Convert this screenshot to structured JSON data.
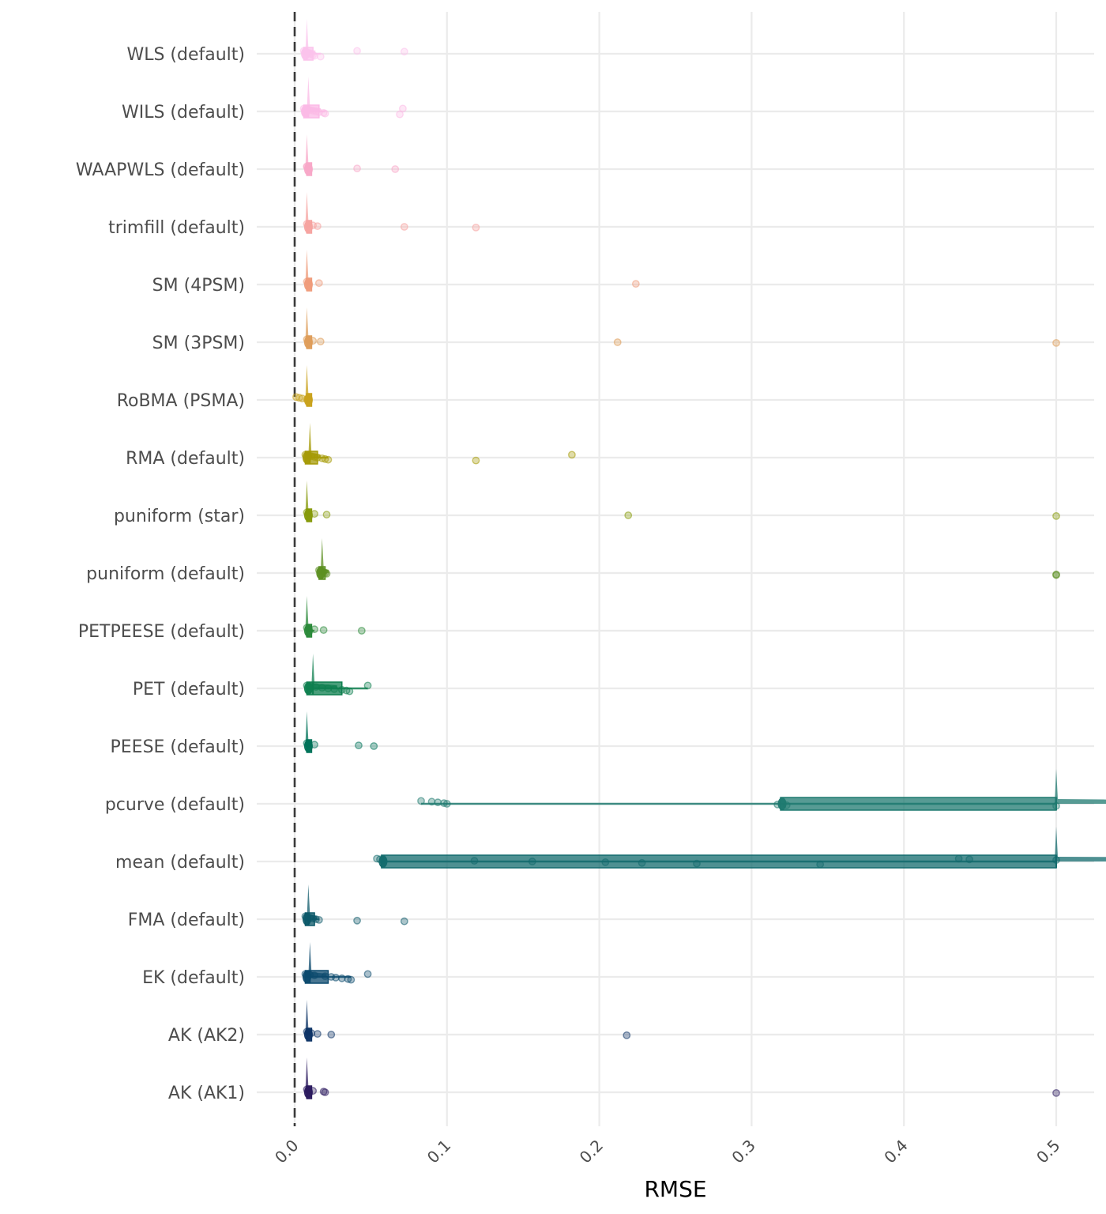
{
  "chart_data": {
    "type": "raincloud",
    "title": "",
    "xlabel": "RMSE",
    "ylabel": "",
    "xlim": [
      0,
      0.5
    ],
    "x_ticks": [
      0.0,
      0.1,
      0.2,
      0.3,
      0.4,
      0.5
    ],
    "x_tick_labels": [
      "0.0",
      "0.1",
      "0.2",
      "0.3",
      "0.4",
      "0.5"
    ],
    "reference_line": {
      "x": 0,
      "style": "dashed"
    },
    "grid": true,
    "legend": "none",
    "categories": [
      "WLS (default)",
      "WILS (default)",
      "WAAPWLS (default)",
      "trimfill (default)",
      "SM (4PSM)",
      "SM (3PSM)",
      "RoBMA (PSMA)",
      "RMA (default)",
      "puniform (star)",
      "puniform (default)",
      "PETPEESE (default)",
      "PET (default)",
      "PEESE (default)",
      "pcurve (default)",
      "mean (default)",
      "FMA (default)",
      "EK (default)",
      "AK (AK2)",
      "AK (AK1)"
    ],
    "series": [
      {
        "name": "WLS (default)",
        "color": "#FBC3EC",
        "box": [
          0.006,
          0.008,
          0.012
        ],
        "points": [
          0.006,
          0.007,
          0.008,
          0.009,
          0.01,
          0.011,
          0.012,
          0.013,
          0.017,
          0.041,
          0.072
        ]
      },
      {
        "name": "WILS (default)",
        "color": "#FBB9E6",
        "box": [
          0.006,
          0.009,
          0.016
        ],
        "points": [
          0.006,
          0.008,
          0.01,
          0.012,
          0.014,
          0.016,
          0.019,
          0.02,
          0.069,
          0.071
        ]
      },
      {
        "name": "WAAPWLS (default)",
        "color": "#F8A8C8",
        "box": [
          0.008,
          0.008,
          0.009
        ],
        "points": [
          0.008,
          0.008,
          0.009,
          0.041,
          0.066
        ]
      },
      {
        "name": "trimfill (default)",
        "color": "#F5A3A0",
        "box": [
          0.008,
          0.008,
          0.009
        ],
        "points": [
          0.008,
          0.009,
          0.012,
          0.015,
          0.072,
          0.119
        ]
      },
      {
        "name": "SM (4PSM)",
        "color": "#EF9C7B",
        "box": [
          0.008,
          0.008,
          0.009
        ],
        "points": [
          0.008,
          0.009,
          0.016,
          0.224
        ]
      },
      {
        "name": "SM (3PSM)",
        "color": "#DE9D5A",
        "box": [
          0.008,
          0.008,
          0.009
        ],
        "points": [
          0.008,
          0.009,
          0.012,
          0.017,
          0.212,
          0.5
        ]
      },
      {
        "name": "RoBMA (PSMA)",
        "color": "#C9A21C",
        "box": [
          0.008,
          0.008,
          0.009
        ],
        "points": [
          0.001,
          0.003,
          0.005,
          0.008,
          0.009
        ]
      },
      {
        "name": "RMA (default)",
        "color": "#A59A06",
        "box": [
          0.007,
          0.01,
          0.015
        ],
        "points": [
          0.007,
          0.009,
          0.011,
          0.013,
          0.015,
          0.018,
          0.02,
          0.022,
          0.119,
          0.182
        ]
      },
      {
        "name": "puniform (star)",
        "color": "#869A0A",
        "box": [
          0.008,
          0.008,
          0.009
        ],
        "points": [
          0.008,
          0.009,
          0.013,
          0.021,
          0.219,
          0.5
        ]
      },
      {
        "name": "puniform (default)",
        "color": "#5D9023",
        "box": [
          0.016,
          0.018,
          0.02
        ],
        "points": [
          0.016,
          0.017,
          0.018,
          0.019,
          0.02,
          0.021,
          0.5,
          0.5
        ]
      },
      {
        "name": "PETPEESE (default)",
        "color": "#2B8A3A",
        "box": [
          0.008,
          0.008,
          0.01
        ],
        "points": [
          0.008,
          0.009,
          0.013,
          0.019,
          0.044
        ]
      },
      {
        "name": "PET (default)",
        "color": "#0E7F4F",
        "box": [
          0.008,
          0.012,
          0.031
        ],
        "points": [
          0.008,
          0.01,
          0.014,
          0.018,
          0.022,
          0.026,
          0.031,
          0.034,
          0.036,
          0.048
        ]
      },
      {
        "name": "PEESE (default)",
        "color": "#00735A",
        "box": [
          0.008,
          0.008,
          0.009
        ],
        "points": [
          0.008,
          0.009,
          0.013,
          0.042,
          0.052
        ]
      },
      {
        "name": "pcurve (default)",
        "color": "#1F7A70",
        "box": [
          0.319,
          0.5,
          0.5
        ],
        "whisker": [
          0.083,
          0.5
        ],
        "points": [
          0.083,
          0.09,
          0.094,
          0.098,
          0.1,
          0.317,
          0.323,
          0.5
        ]
      },
      {
        "name": "mean (default)",
        "color": "#136B6E",
        "box": [
          0.057,
          0.5,
          0.5
        ],
        "points": [
          0.054,
          0.056,
          0.058,
          0.118,
          0.156,
          0.204,
          0.228,
          0.264,
          0.345,
          0.436,
          0.443,
          0.5
        ]
      },
      {
        "name": "FMA (default)",
        "color": "#0D5A6A",
        "box": [
          0.007,
          0.009,
          0.013
        ],
        "points": [
          0.007,
          0.008,
          0.01,
          0.012,
          0.014,
          0.016,
          0.041,
          0.072
        ]
      },
      {
        "name": "EK (default)",
        "color": "#0C4A6E",
        "box": [
          0.007,
          0.01,
          0.022
        ],
        "points": [
          0.007,
          0.01,
          0.013,
          0.02,
          0.024,
          0.027,
          0.031,
          0.035,
          0.037,
          0.048
        ]
      },
      {
        "name": "AK (AK2)",
        "color": "#0E3466",
        "box": [
          0.008,
          0.008,
          0.009
        ],
        "points": [
          0.008,
          0.009,
          0.011,
          0.015,
          0.024,
          0.218
        ]
      },
      {
        "name": "AK (AK1)",
        "color": "#2B1A5E",
        "box": [
          0.008,
          0.008,
          0.009
        ],
        "points": [
          0.008,
          0.009,
          0.012,
          0.019,
          0.02,
          0.5
        ]
      }
    ]
  }
}
